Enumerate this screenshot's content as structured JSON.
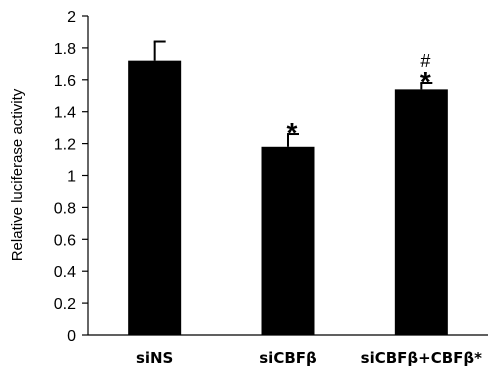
{
  "chart_data": {
    "type": "bar",
    "title": "",
    "xlabel": "",
    "ylabel": "Relative luciferase activity",
    "categories": [
      "siNS",
      "siCBFβ",
      "siCBFβ+CBFβ*"
    ],
    "values": [
      1.72,
      1.18,
      1.54
    ],
    "error_bars": [
      0.12,
      0.08,
      0.04
    ],
    "annotations": [
      [],
      [
        "*"
      ],
      [
        "#",
        "*"
      ]
    ],
    "ylim": [
      0,
      2
    ],
    "yticks": [
      "0",
      "0.2",
      "0.4",
      "0.6",
      "0.8",
      "1",
      "1.2",
      "1.4",
      "1.6",
      "1.8",
      "2"
    ],
    "grid": false,
    "legend": "none",
    "bar_color": "#000000"
  }
}
